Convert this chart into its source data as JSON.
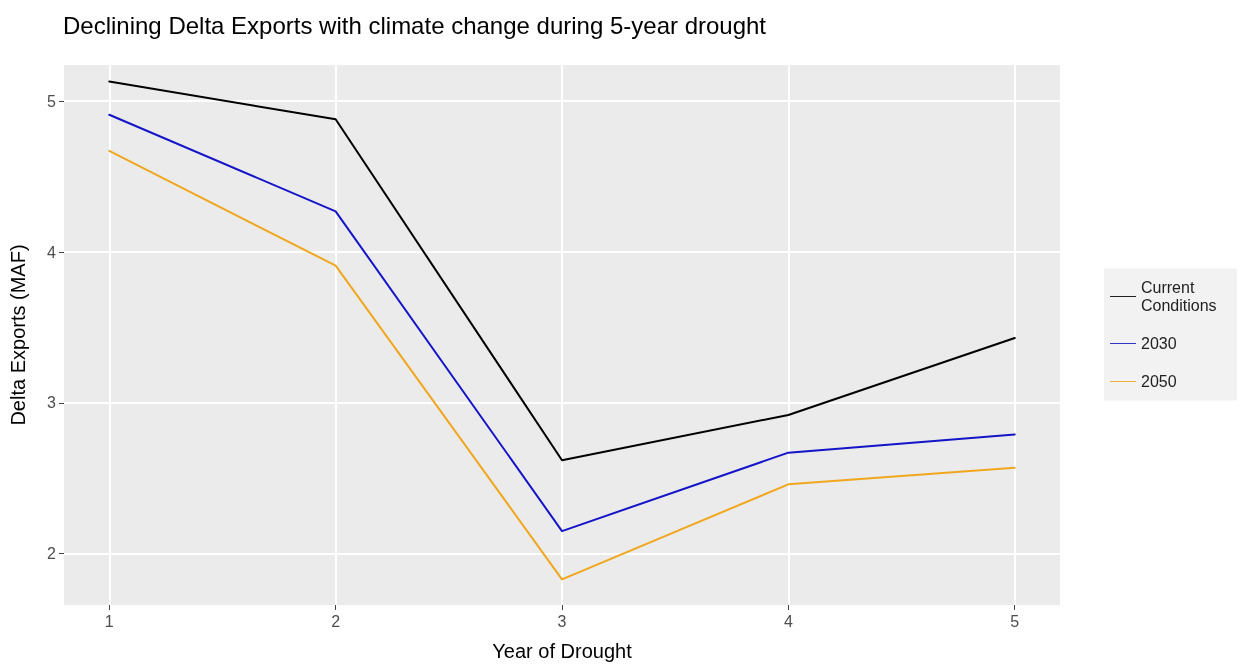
{
  "chart_data": {
    "type": "line",
    "title": "Declining Delta Exports with climate change during 5-year drought",
    "xlabel": "Year of Drought",
    "ylabel": "Delta Exports (MAF)",
    "x": [
      1,
      2,
      3,
      4,
      5
    ],
    "series": [
      {
        "name": "Current Conditions",
        "color": "#000000",
        "values": [
          5.13,
          4.88,
          2.62,
          2.92,
          3.43
        ]
      },
      {
        "name": "2030",
        "color": "#1414c8",
        "values": [
          4.91,
          4.27,
          2.15,
          2.67,
          2.79
        ]
      },
      {
        "name": "2050",
        "color": "#f0a71e",
        "values": [
          4.67,
          3.91,
          1.83,
          2.46,
          2.57
        ]
      }
    ],
    "xlim": [
      0.8,
      5.2
    ],
    "xticks": [
      1,
      2,
      3,
      4,
      5
    ],
    "ylim": [
      1.66,
      5.24
    ],
    "yticks": [
      2,
      3,
      4,
      5
    ],
    "grid": true,
    "legend": "right",
    "marker": "none",
    "line_style": "solid"
  }
}
